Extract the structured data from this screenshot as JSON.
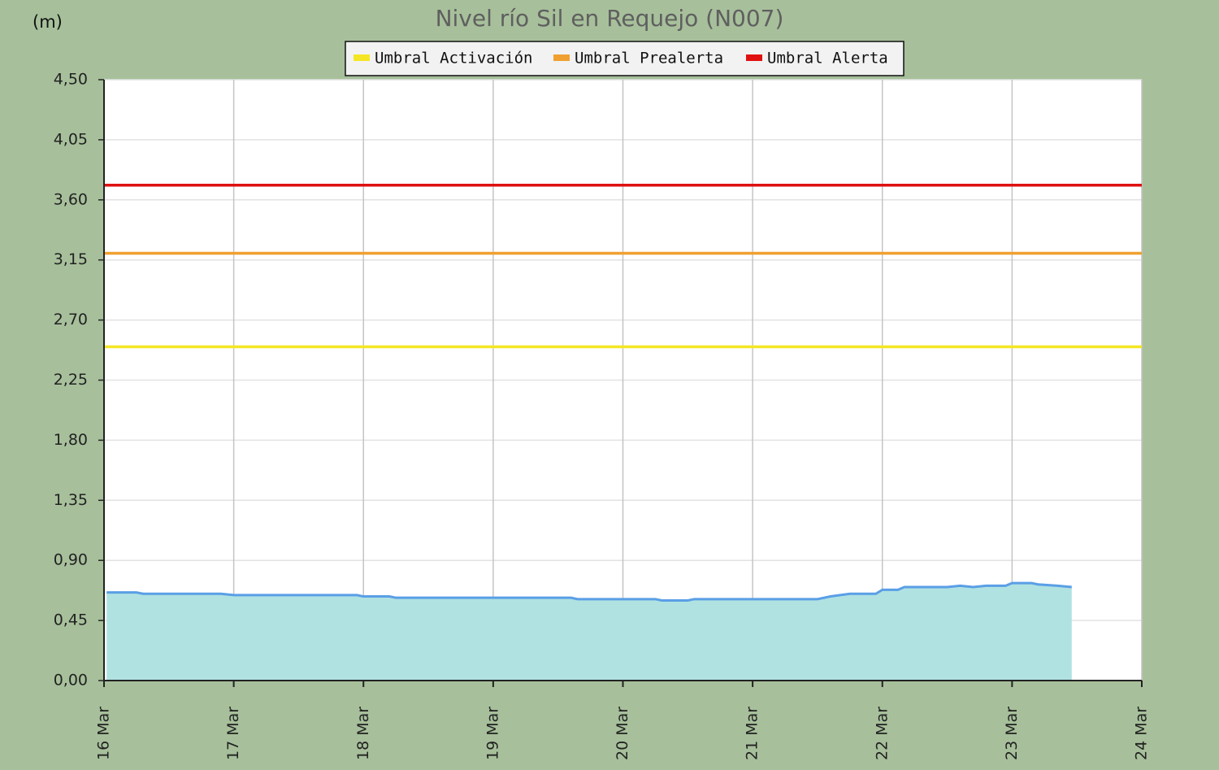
{
  "chart_data": {
    "type": "area",
    "title": "Nivel río Sil en Requejo  (N007)",
    "y_label": "(m)",
    "x": [
      16.02,
      16.25,
      16.3,
      16.9,
      17.0,
      17.95,
      18.0,
      18.2,
      18.25,
      19.6,
      19.65,
      20.25,
      20.3,
      20.5,
      20.55,
      21.5,
      21.6,
      21.75,
      21.95,
      22.0,
      22.12,
      22.17,
      22.5,
      22.6,
      22.7,
      22.8,
      22.95,
      23.0,
      23.15,
      23.2,
      23.35,
      23.46
    ],
    "values": [
      0.66,
      0.66,
      0.65,
      0.65,
      0.64,
      0.64,
      0.63,
      0.63,
      0.62,
      0.62,
      0.61,
      0.61,
      0.6,
      0.6,
      0.61,
      0.61,
      0.63,
      0.65,
      0.65,
      0.68,
      0.68,
      0.7,
      0.7,
      0.71,
      0.7,
      0.71,
      0.71,
      0.73,
      0.73,
      0.72,
      0.71,
      0.7
    ],
    "color": "#5a9fe6",
    "fill_color": "#b0e2e2",
    "thresholds": [
      {
        "name": "Umbral Activación",
        "color": "#f5e625",
        "value": 2.5
      },
      {
        "name": "Umbral Prealerta",
        "color": "#f0a030",
        "value": 3.2
      },
      {
        "name": "Umbral Alerta",
        "color": "#e01010",
        "value": 3.71
      }
    ],
    "xlim": [
      16,
      24
    ],
    "xticks": [
      {
        "value": 16,
        "label": "16 Mar"
      },
      {
        "value": 17,
        "label": "17 Mar"
      },
      {
        "value": 18,
        "label": "18 Mar"
      },
      {
        "value": 19,
        "label": "19 Mar"
      },
      {
        "value": 20,
        "label": "20 Mar"
      },
      {
        "value": 21,
        "label": "21 Mar"
      },
      {
        "value": 22,
        "label": "22 Mar"
      },
      {
        "value": 23,
        "label": "23 Mar"
      },
      {
        "value": 24,
        "label": "24 Mar"
      }
    ],
    "ylim": [
      0,
      4.5
    ],
    "yticks": [
      {
        "value": 0,
        "label": "0,00"
      },
      {
        "value": 0.45,
        "label": "0,45"
      },
      {
        "value": 0.9,
        "label": "0,90"
      },
      {
        "value": 1.35,
        "label": "1,35"
      },
      {
        "value": 1.8,
        "label": "1,80"
      },
      {
        "value": 2.25,
        "label": "2,25"
      },
      {
        "value": 2.7,
        "label": "2,70"
      },
      {
        "value": 3.15,
        "label": "3,15"
      },
      {
        "value": 3.6,
        "label": "3,60"
      },
      {
        "value": 4.05,
        "label": "4,05"
      },
      {
        "value": 4.5,
        "label": "4,50"
      }
    ],
    "grid": true
  }
}
